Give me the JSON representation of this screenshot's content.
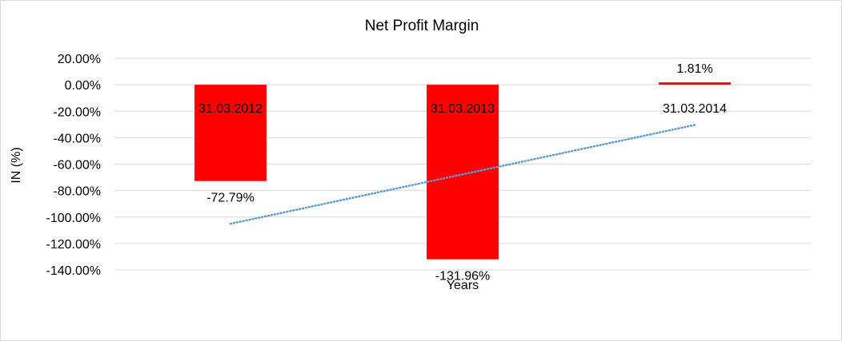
{
  "chart_data": {
    "type": "bar",
    "title": "Net Profit Margin",
    "xlabel": "Years",
    "ylabel": "IN (%)",
    "categories": [
      "31.03.2012",
      "31.03.2013",
      "31.03.2014"
    ],
    "series": [
      {
        "values": [
          -72.79,
          -131.96,
          1.81
        ],
        "data_labels": [
          "-72.79%",
          "-131.96%",
          "1.81%"
        ],
        "color": "#ff0000"
      }
    ],
    "trendline": {
      "type": "linear",
      "style": "dotted",
      "color": "#5b9bd5",
      "start": {
        "x": "31.03.2012",
        "y": -105.1
      },
      "end": {
        "x": "31.03.2014",
        "y": -30.4
      }
    },
    "ylim": [
      -140,
      20
    ],
    "yticks": [
      20,
      0,
      -20,
      -40,
      -60,
      -80,
      -100,
      -120,
      -140
    ],
    "ytick_labels": [
      "20.00%",
      "0.00%",
      "-20.00%",
      "-40.00%",
      "-60.00%",
      "-80.00%",
      "-100.00%",
      "-120.00%",
      "-140.00%"
    ],
    "grid": true,
    "gridline_color": "#d9d9d9",
    "legend": "none"
  }
}
